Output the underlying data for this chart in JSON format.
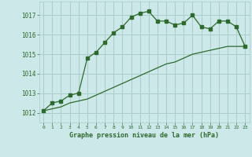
{
  "line1_x": [
    0,
    1,
    2,
    3,
    4,
    5,
    6,
    7,
    8,
    9,
    10,
    11,
    12,
    13,
    14,
    15,
    16,
    17,
    18,
    19,
    20,
    21,
    22,
    23
  ],
  "line1_y": [
    1012.1,
    1012.5,
    1012.6,
    1012.9,
    1013.0,
    1014.8,
    1015.1,
    1015.6,
    1016.1,
    1016.4,
    1016.9,
    1017.1,
    1017.2,
    1016.7,
    1016.7,
    1016.5,
    1016.6,
    1017.0,
    1016.4,
    1016.3,
    1016.7,
    1016.7,
    1016.4,
    1015.4
  ],
  "line2_x": [
    0,
    1,
    2,
    3,
    4,
    5,
    6,
    7,
    8,
    9,
    10,
    11,
    12,
    13,
    14,
    15,
    16,
    17,
    18,
    19,
    20,
    21,
    22,
    23
  ],
  "line2_y": [
    1012.1,
    1012.2,
    1012.3,
    1012.5,
    1012.6,
    1012.7,
    1012.9,
    1013.1,
    1013.3,
    1013.5,
    1013.7,
    1013.9,
    1014.1,
    1014.3,
    1014.5,
    1014.6,
    1014.8,
    1015.0,
    1015.1,
    1015.2,
    1015.3,
    1015.4,
    1015.4,
    1015.4
  ],
  "line_color": "#2d6a2d",
  "bg_color": "#cce8e8",
  "grid_color": "#aacccc",
  "xlabel": "Graphe pression niveau de la mer (hPa)",
  "ylim": [
    1011.5,
    1017.7
  ],
  "xlim": [
    -0.5,
    23.5
  ],
  "yticks": [
    1012,
    1013,
    1014,
    1015,
    1016,
    1017
  ],
  "xticks": [
    0,
    1,
    2,
    3,
    4,
    5,
    6,
    7,
    8,
    9,
    10,
    11,
    12,
    13,
    14,
    15,
    16,
    17,
    18,
    19,
    20,
    21,
    22,
    23
  ]
}
